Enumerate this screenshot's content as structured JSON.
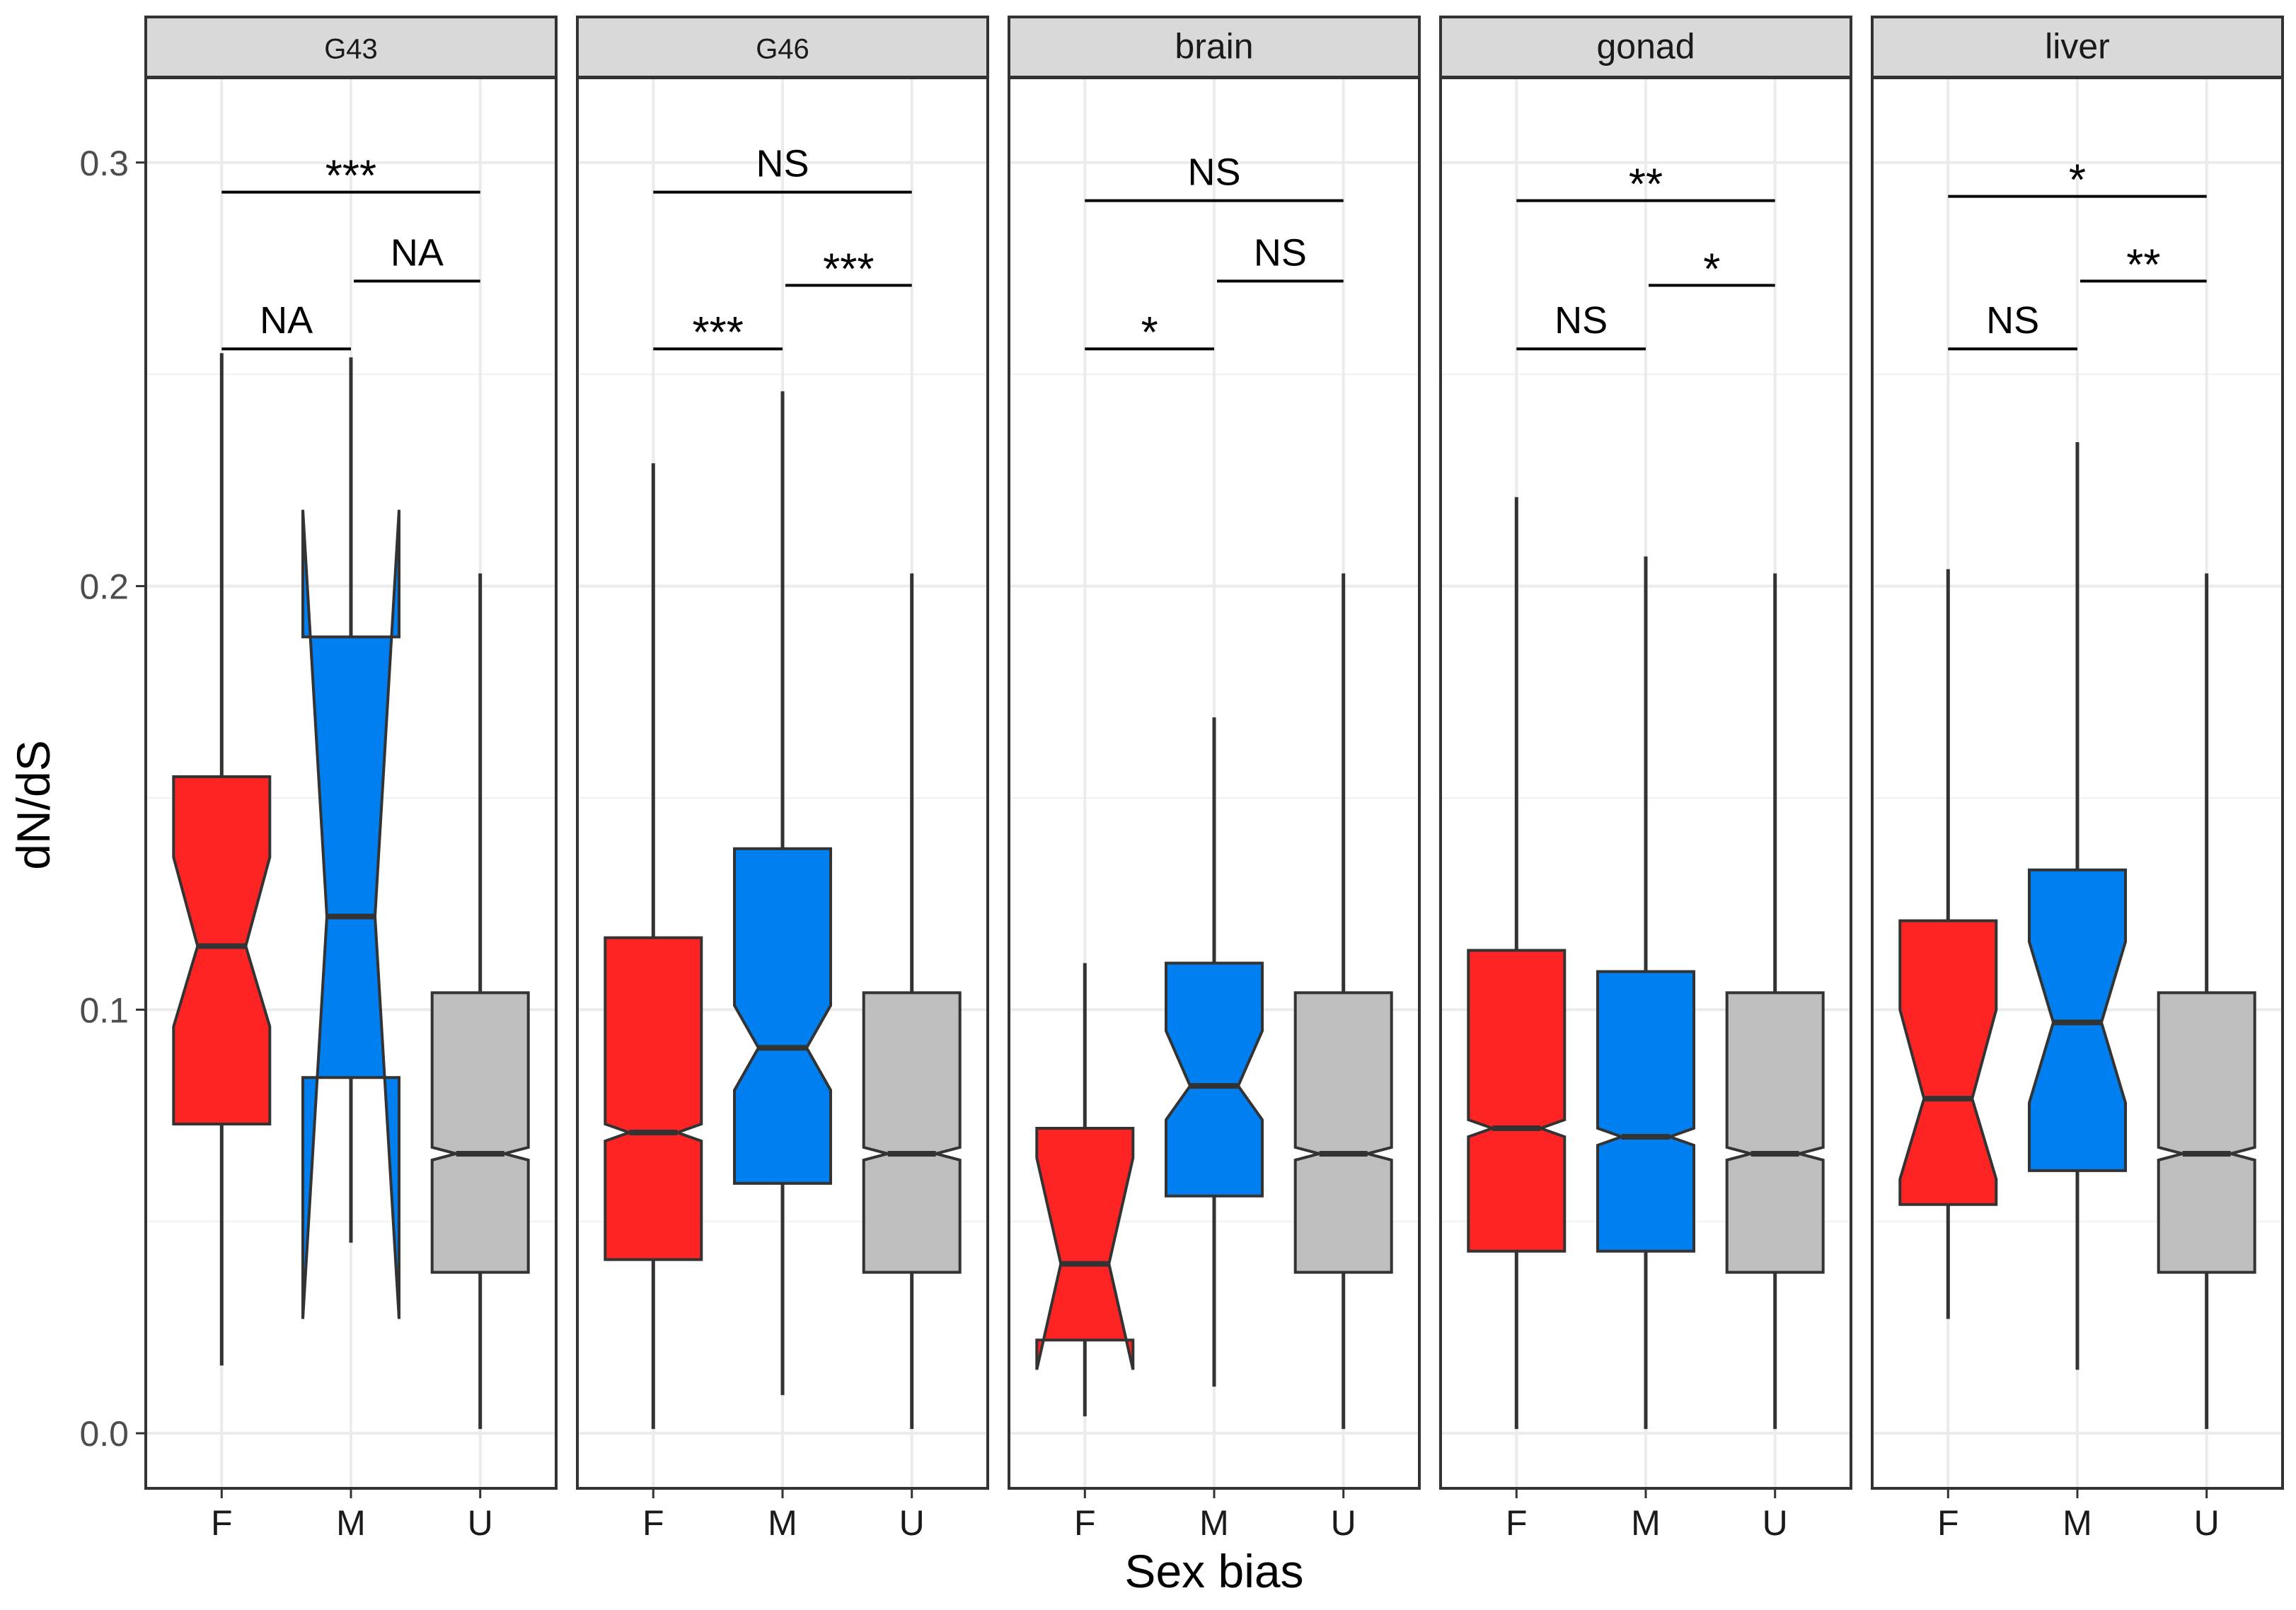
{
  "chart_data": {
    "type": "boxplot",
    "title": "",
    "xlabel": "Sex bias",
    "ylabel": "dN/dS",
    "ylim": [
      -0.013,
      0.32
    ],
    "y_ticks": [
      0.0,
      0.1,
      0.2,
      0.3
    ],
    "y_tick_labels": [
      "0.0",
      "0.1",
      "0.2",
      "0.3"
    ],
    "grid": true,
    "notched": true,
    "categories": [
      "F",
      "M",
      "U"
    ],
    "category_colors": {
      "F": "#ff2424",
      "M": "#0080f0",
      "U": "#bebebe"
    },
    "panels": [
      {
        "strip": "G43",
        "boxes": [
          {
            "cat": "F",
            "whisker_low": 0.016,
            "q1": 0.073,
            "median": 0.115,
            "q3": 0.155,
            "whisker_high": 0.255,
            "notch_low": 0.096,
            "notch_high": 0.136
          },
          {
            "cat": "M",
            "whisker_low": 0.045,
            "q1": 0.084,
            "median": 0.122,
            "q3": 0.188,
            "whisker_high": 0.254,
            "notch_low": 0.027,
            "notch_high": 0.218
          },
          {
            "cat": "U",
            "whisker_low": 0.001,
            "q1": 0.038,
            "median": 0.066,
            "q3": 0.104,
            "whisker_high": 0.203,
            "notch_low": 0.0645,
            "notch_high": 0.0675
          }
        ],
        "comparisons": [
          {
            "from": "F",
            "to": "U",
            "label": "***",
            "y": 0.293
          },
          {
            "from": "M",
            "to": "U",
            "label": "NA",
            "y": 0.272
          },
          {
            "from": "F",
            "to": "M",
            "label": "NA",
            "y": 0.256
          }
        ]
      },
      {
        "strip": "G46",
        "boxes": [
          {
            "cat": "F",
            "whisker_low": 0.001,
            "q1": 0.041,
            "median": 0.071,
            "q3": 0.117,
            "whisker_high": 0.229,
            "notch_low": 0.069,
            "notch_high": 0.073
          },
          {
            "cat": "M",
            "whisker_low": 0.009,
            "q1": 0.059,
            "median": 0.091,
            "q3": 0.138,
            "whisker_high": 0.246,
            "notch_low": 0.081,
            "notch_high": 0.101
          },
          {
            "cat": "U",
            "whisker_low": 0.001,
            "q1": 0.038,
            "median": 0.066,
            "q3": 0.104,
            "whisker_high": 0.203,
            "notch_low": 0.0645,
            "notch_high": 0.0675
          }
        ],
        "comparisons": [
          {
            "from": "F",
            "to": "U",
            "label": "NS",
            "y": 0.293
          },
          {
            "from": "M",
            "to": "U",
            "label": "***",
            "y": 0.271
          },
          {
            "from": "F",
            "to": "M",
            "label": "***",
            "y": 0.256
          }
        ]
      },
      {
        "strip": "brain",
        "boxes": [
          {
            "cat": "F",
            "whisker_low": 0.004,
            "q1": 0.022,
            "median": 0.04,
            "q3": 0.072,
            "whisker_high": 0.111,
            "notch_low": 0.015,
            "notch_high": 0.065
          },
          {
            "cat": "M",
            "whisker_low": 0.011,
            "q1": 0.056,
            "median": 0.082,
            "q3": 0.111,
            "whisker_high": 0.169,
            "notch_low": 0.074,
            "notch_high": 0.095
          },
          {
            "cat": "U",
            "whisker_low": 0.001,
            "q1": 0.038,
            "median": 0.066,
            "q3": 0.104,
            "whisker_high": 0.203,
            "notch_low": 0.0645,
            "notch_high": 0.0675
          }
        ],
        "comparisons": [
          {
            "from": "F",
            "to": "U",
            "label": "NS",
            "y": 0.291
          },
          {
            "from": "M",
            "to": "U",
            "label": "NS",
            "y": 0.272
          },
          {
            "from": "F",
            "to": "M",
            "label": "*",
            "y": 0.256
          }
        ]
      },
      {
        "strip": "gonad",
        "boxes": [
          {
            "cat": "F",
            "whisker_low": 0.001,
            "q1": 0.043,
            "median": 0.072,
            "q3": 0.114,
            "whisker_high": 0.221,
            "notch_low": 0.07,
            "notch_high": 0.074
          },
          {
            "cat": "M",
            "whisker_low": 0.001,
            "q1": 0.043,
            "median": 0.07,
            "q3": 0.109,
            "whisker_high": 0.207,
            "notch_low": 0.068,
            "notch_high": 0.072
          },
          {
            "cat": "U",
            "whisker_low": 0.001,
            "q1": 0.038,
            "median": 0.066,
            "q3": 0.104,
            "whisker_high": 0.203,
            "notch_low": 0.0645,
            "notch_high": 0.0675
          }
        ],
        "comparisons": [
          {
            "from": "F",
            "to": "U",
            "label": "**",
            "y": 0.291
          },
          {
            "from": "M",
            "to": "U",
            "label": "*",
            "y": 0.271
          },
          {
            "from": "F",
            "to": "M",
            "label": "NS",
            "y": 0.256
          }
        ]
      },
      {
        "strip": "liver",
        "boxes": [
          {
            "cat": "F",
            "whisker_low": 0.027,
            "q1": 0.054,
            "median": 0.079,
            "q3": 0.121,
            "whisker_high": 0.204,
            "notch_low": 0.06,
            "notch_high": 0.1
          },
          {
            "cat": "M",
            "whisker_low": 0.015,
            "q1": 0.062,
            "median": 0.097,
            "q3": 0.133,
            "whisker_high": 0.234,
            "notch_low": 0.078,
            "notch_high": 0.116
          },
          {
            "cat": "U",
            "whisker_low": 0.001,
            "q1": 0.038,
            "median": 0.066,
            "q3": 0.104,
            "whisker_high": 0.203,
            "notch_low": 0.0645,
            "notch_high": 0.0675
          }
        ],
        "comparisons": [
          {
            "from": "F",
            "to": "U",
            "label": "*",
            "y": 0.292
          },
          {
            "from": "M",
            "to": "U",
            "label": "**",
            "y": 0.272
          },
          {
            "from": "F",
            "to": "M",
            "label": "NS",
            "y": 0.256
          }
        ]
      }
    ]
  }
}
